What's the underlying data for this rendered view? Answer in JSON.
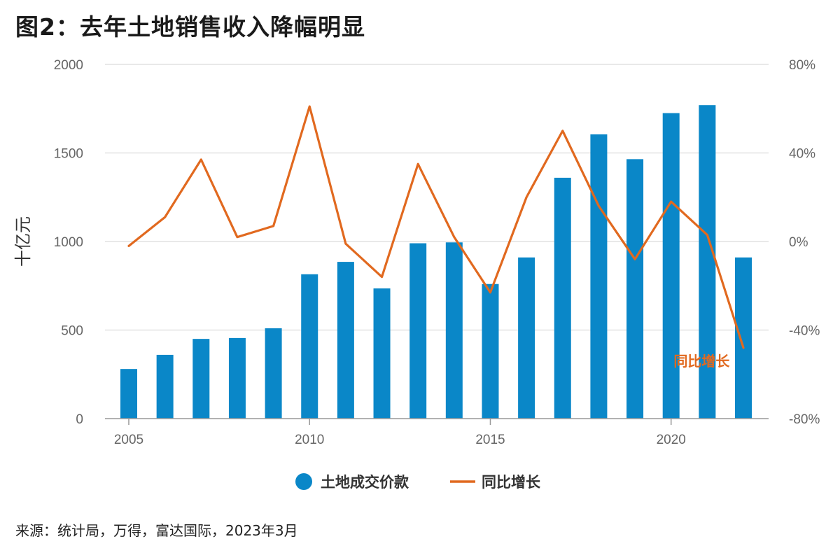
{
  "title": "图2：去年土地销售收入降幅明显",
  "source": "来源：统计局，万得，富达国际，2023年3月",
  "chart_data": {
    "type": "bar",
    "x": [
      2005,
      2006,
      2007,
      2008,
      2009,
      2010,
      2011,
      2012,
      2013,
      2014,
      2015,
      2016,
      2017,
      2018,
      2019,
      2020,
      2021,
      2022
    ],
    "x_ticks": [
      "2005",
      "2010",
      "2015",
      "2020"
    ],
    "ylabel": "十亿元",
    "ylim": [
      0,
      2000
    ],
    "y_ticks": [
      "0",
      "500",
      "1000",
      "1500",
      "2000"
    ],
    "y2lim": [
      -80,
      80
    ],
    "y2_ticks": [
      "-80%",
      "-40%",
      "0%",
      "40%",
      "80%"
    ],
    "grid": true,
    "legend_placement": "bottom-center",
    "series": [
      {
        "name": "土地成交价款",
        "type": "bar",
        "axis": "left",
        "color": "#0A87C8",
        "values": [
          280,
          360,
          450,
          455,
          510,
          815,
          885,
          735,
          990,
          995,
          760,
          910,
          1360,
          1605,
          1465,
          1725,
          1770,
          910
        ]
      },
      {
        "name": "同比增长",
        "type": "line",
        "axis": "right",
        "color": "#E1691F",
        "values": [
          -2,
          11,
          37,
          2,
          7,
          61,
          -1,
          -16,
          35,
          2,
          -23,
          20,
          50,
          16,
          -8,
          18,
          3,
          -48
        ]
      }
    ],
    "annotations": [
      {
        "text": "同比增长",
        "near_series": "同比增长",
        "x": 2021,
        "y": -54
      }
    ]
  }
}
